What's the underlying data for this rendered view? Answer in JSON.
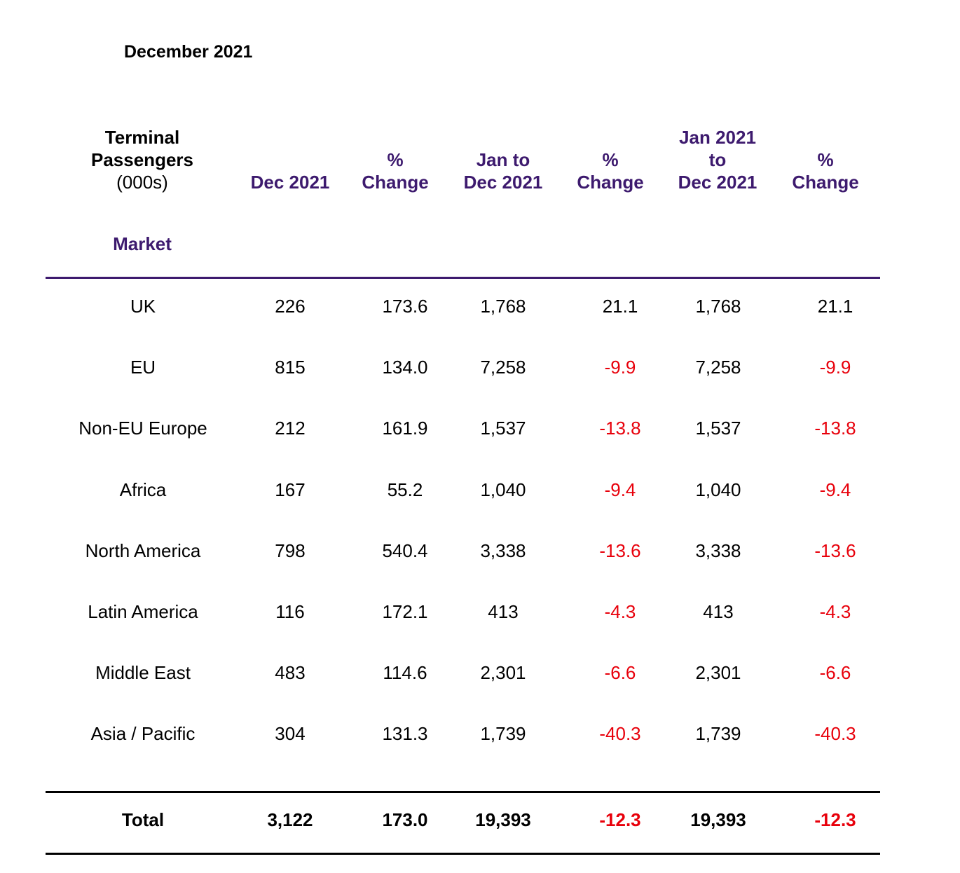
{
  "title": "December 2021",
  "headers": {
    "col0": [
      "Terminal",
      "Passengers",
      "(000s)"
    ],
    "col1": "Dec 2021",
    "col2": [
      "%",
      "Change"
    ],
    "col3": [
      "Jan to",
      "Dec 2021"
    ],
    "col4": [
      "%",
      "Change"
    ],
    "col5": [
      "Jan 2021",
      "to",
      "Dec 2021"
    ],
    "col6": [
      "%",
      "Change"
    ],
    "market": "Market"
  },
  "rows": [
    {
      "market": "UK",
      "dec": "226",
      "dec_change": "173.6",
      "jan_dec": "1,768",
      "jan_dec_change": "21.1",
      "ytd": "1,768",
      "ytd_change": "21.1"
    },
    {
      "market": "EU",
      "dec": "815",
      "dec_change": "134.0",
      "jan_dec": "7,258",
      "jan_dec_change": "-9.9",
      "ytd": "7,258",
      "ytd_change": "-9.9"
    },
    {
      "market": "Non-EU Europe",
      "dec": "212",
      "dec_change": "161.9",
      "jan_dec": "1,537",
      "jan_dec_change": "-13.8",
      "ytd": "1,537",
      "ytd_change": "-13.8"
    },
    {
      "market": "Africa",
      "dec": "167",
      "dec_change": "55.2",
      "jan_dec": "1,040",
      "jan_dec_change": "-9.4",
      "ytd": "1,040",
      "ytd_change": "-9.4"
    },
    {
      "market": "North America",
      "dec": "798",
      "dec_change": "540.4",
      "jan_dec": "3,338",
      "jan_dec_change": "-13.6",
      "ytd": "3,338",
      "ytd_change": "-13.6"
    },
    {
      "market": "Latin America",
      "dec": "116",
      "dec_change": "172.1",
      "jan_dec": "413",
      "jan_dec_change": "-4.3",
      "ytd": "413",
      "ytd_change": "-4.3"
    },
    {
      "market": "Middle East",
      "dec": "483",
      "dec_change": "114.6",
      "jan_dec": "2,301",
      "jan_dec_change": "-6.6",
      "ytd": "2,301",
      "ytd_change": "-6.6"
    },
    {
      "market": "Asia / Pacific",
      "dec": "304",
      "dec_change": "131.3",
      "jan_dec": "1,739",
      "jan_dec_change": "-40.3",
      "ytd": "1,739",
      "ytd_change": "-40.3"
    }
  ],
  "total": {
    "market": "Total",
    "dec": "3,122",
    "dec_change": "173.0",
    "jan_dec": "19,393",
    "jan_dec_change": "-12.3",
    "ytd": "19,393",
    "ytd_change": "-12.3"
  },
  "colors": {
    "header_purple": "#3d1a6e",
    "negative_red": "#e8000b"
  }
}
